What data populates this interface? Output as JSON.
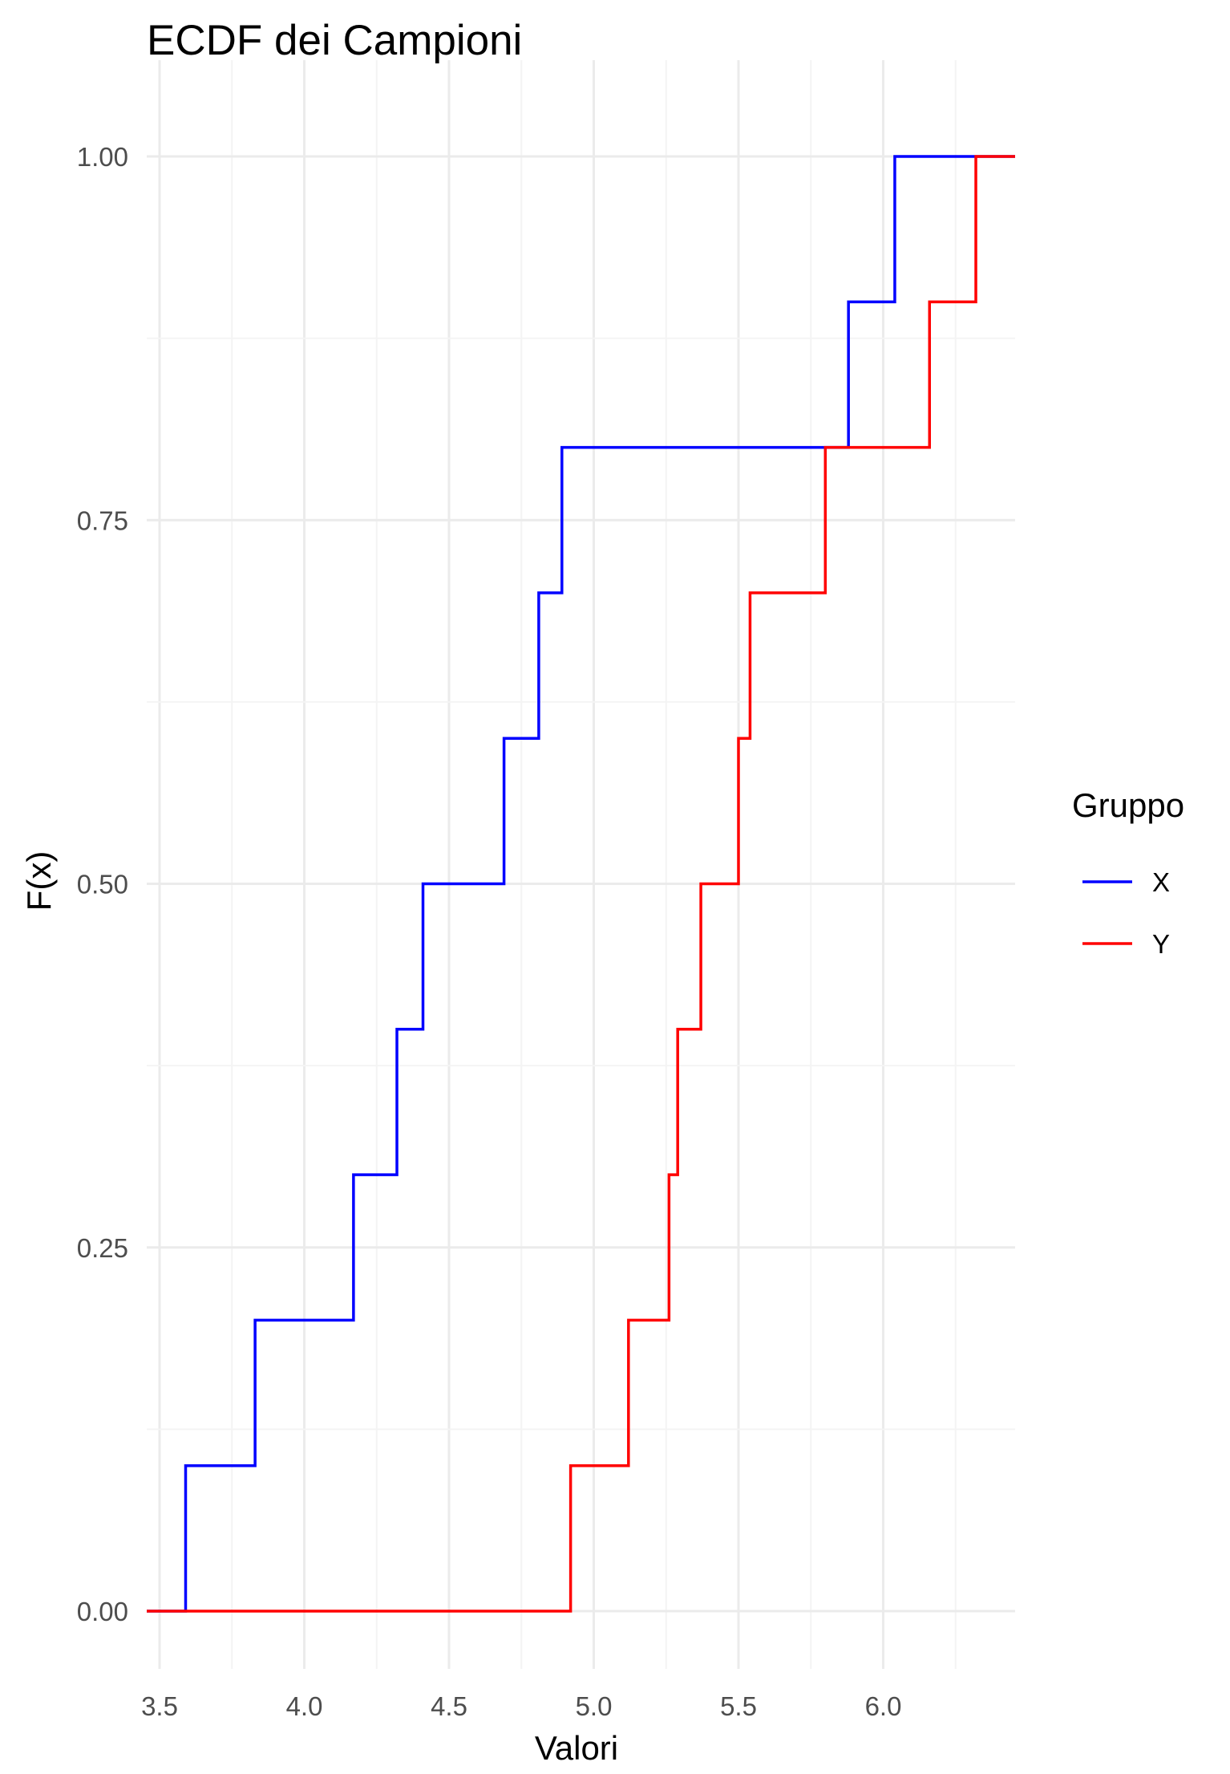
{
  "chart_data": {
    "type": "line",
    "step": true,
    "title": "ECDF dei Campioni",
    "xlabel": "Valori",
    "ylabel": "F(x)",
    "xlim": [
      3.5,
      6.45
    ],
    "ylim": [
      0,
      1
    ],
    "x_ticks": [
      3.5,
      4.0,
      4.5,
      5.0,
      5.5,
      6.0
    ],
    "x_tick_labels": [
      "3.5",
      "4.0",
      "4.5",
      "5.0",
      "5.5",
      "6.0"
    ],
    "y_ticks": [
      0,
      0.25,
      0.5,
      0.75,
      1.0
    ],
    "y_tick_labels": [
      "0.00",
      "0.25",
      "0.50",
      "0.75",
      "1.00"
    ],
    "grid": true,
    "legend": {
      "title": "Gruppo",
      "position": "right"
    },
    "series": [
      {
        "name": "X",
        "color": "#0000ff",
        "values": [
          3.59,
          3.83,
          4.17,
          4.32,
          4.41,
          4.69,
          4.81,
          4.89,
          5.88,
          6.04
        ]
      },
      {
        "name": "Y",
        "color": "#ff0000",
        "values": [
          4.92,
          5.12,
          5.26,
          5.29,
          5.37,
          5.5,
          5.54,
          5.8,
          6.16,
          6.32
        ]
      }
    ]
  }
}
